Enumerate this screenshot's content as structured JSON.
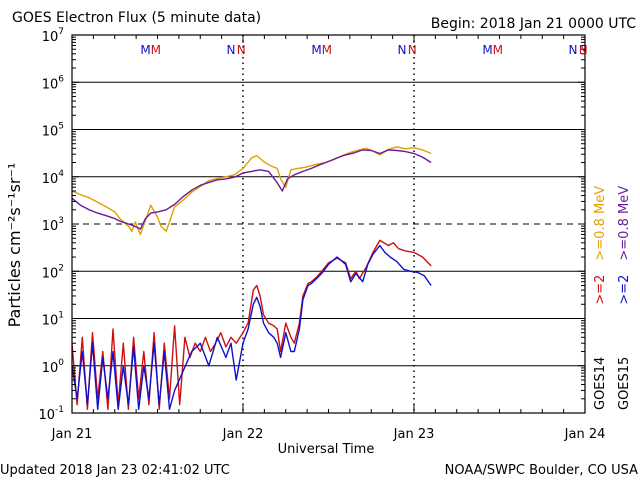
{
  "header": {
    "title": "GOES Electron Flux (5 minute data)",
    "begin": "Begin: 2018 Jan 21 0000 UTC"
  },
  "footer": {
    "updated": "Updated 2018 Jan 23 02:41:02 UTC",
    "source": "NOAA/SWPC Boulder, CO USA"
  },
  "chart_data": {
    "type": "line",
    "title": "GOES Electron Flux (5 minute data)",
    "xlabel": "Universal Time",
    "ylabel": "Particles cm⁻²s⁻¹sr⁻¹",
    "x_unit": "days since 2018 Jan 21 00:00 UTC",
    "xlim": [
      0,
      3
    ],
    "ylim": [
      0.1,
      10000000
    ],
    "yscale": "log",
    "x_ticks": [
      {
        "label": "Jan 21",
        "x": 0
      },
      {
        "label": "Jan 22",
        "x": 1
      },
      {
        "label": "Jan 23",
        "x": 2
      },
      {
        "label": "Jan 24",
        "x": 3
      }
    ],
    "y_ticks": [
      {
        "base": "10",
        "exp": "-1",
        "value": 0.1
      },
      {
        "base": "10",
        "exp": "0",
        "value": 1
      },
      {
        "base": "10",
        "exp": "1",
        "value": 10
      },
      {
        "base": "10",
        "exp": "2",
        "value": 100
      },
      {
        "base": "10",
        "exp": "3",
        "value": 1000
      },
      {
        "base": "10",
        "exp": "4",
        "value": 10000
      },
      {
        "base": "10",
        "exp": "5",
        "value": 100000
      },
      {
        "base": "10",
        "exp": "6",
        "value": 1000000
      },
      {
        "base": "10",
        "exp": "7",
        "value": 10000000
      }
    ],
    "threshold": {
      "value": 1000,
      "style": "dashed"
    },
    "grid": "horizontal decades",
    "markers": [
      {
        "label": "M",
        "x": 0.43,
        "color": "#1010cc"
      },
      {
        "label": "M",
        "x": 0.49,
        "color": "#cc1010"
      },
      {
        "label": "N",
        "x": 0.93,
        "color": "#1010cc"
      },
      {
        "label": "N",
        "x": 0.99,
        "color": "#cc1010"
      },
      {
        "label": "M",
        "x": 1.43,
        "color": "#1010cc"
      },
      {
        "label": "M",
        "x": 1.49,
        "color": "#cc1010"
      },
      {
        "label": "N",
        "x": 1.93,
        "color": "#1010cc"
      },
      {
        "label": "N",
        "x": 1.99,
        "color": "#cc1010"
      },
      {
        "label": "M",
        "x": 2.43,
        "color": "#1010cc"
      },
      {
        "label": "M",
        "x": 2.49,
        "color": "#cc1010"
      },
      {
        "label": "N",
        "x": 2.93,
        "color": "#1010cc"
      },
      {
        "label": "N",
        "x": 2.99,
        "color": "#cc1010"
      }
    ],
    "legend": {
      "placement": "right, rotated",
      "columns": [
        {
          "sat": "GOES14",
          "entries": [
            {
              "text": ">=2",
              "color": "#cc1010"
            },
            {
              "text": ">=0.8 MeV",
              "color": "#e0a000"
            }
          ]
        },
        {
          "sat": "GOES15",
          "entries": [
            {
              "text": ">=2",
              "color": "#1010cc"
            },
            {
              "text": ">=0.8 MeV",
              "color": "#6a1a9a"
            }
          ]
        }
      ]
    },
    "series": [
      {
        "name": "GOES14 >=0.8 MeV",
        "color": "#e0a000",
        "points": [
          [
            0,
            5000
          ],
          [
            0.05,
            4200
          ],
          [
            0.1,
            3600
          ],
          [
            0.15,
            2900
          ],
          [
            0.2,
            2300
          ],
          [
            0.25,
            1800
          ],
          [
            0.28,
            1300
          ],
          [
            0.33,
            900
          ],
          [
            0.35,
            700
          ],
          [
            0.37,
            1100
          ],
          [
            0.4,
            600
          ],
          [
            0.43,
            1200
          ],
          [
            0.46,
            2500
          ],
          [
            0.5,
            1400
          ],
          [
            0.52,
            900
          ],
          [
            0.55,
            700
          ],
          [
            0.57,
            1100
          ],
          [
            0.6,
            2300
          ],
          [
            0.65,
            3200
          ],
          [
            0.7,
            4700
          ],
          [
            0.75,
            6200
          ],
          [
            0.8,
            8300
          ],
          [
            0.85,
            9200
          ],
          [
            0.9,
            10000
          ],
          [
            0.95,
            11000
          ],
          [
            1.0,
            15000
          ],
          [
            1.05,
            25000
          ],
          [
            1.08,
            28000
          ],
          [
            1.12,
            21000
          ],
          [
            1.15,
            18000
          ],
          [
            1.18,
            16000
          ],
          [
            1.2,
            15000
          ],
          [
            1.22,
            9000
          ],
          [
            1.25,
            6000
          ],
          [
            1.28,
            14000
          ],
          [
            1.32,
            15000
          ],
          [
            1.37,
            16000
          ],
          [
            1.42,
            18000
          ],
          [
            1.48,
            20000
          ],
          [
            1.53,
            23000
          ],
          [
            1.58,
            28000
          ],
          [
            1.63,
            33000
          ],
          [
            1.68,
            37000
          ],
          [
            1.72,
            40000
          ],
          [
            1.76,
            35000
          ],
          [
            1.8,
            29000
          ],
          [
            1.85,
            38000
          ],
          [
            1.9,
            43000
          ],
          [
            1.95,
            39000
          ],
          [
            2.0,
            41000
          ],
          [
            2.05,
            37000
          ],
          [
            2.1,
            31000
          ]
        ]
      },
      {
        "name": "GOES15 >=0.8 MeV",
        "color": "#6a1a9a",
        "points": [
          [
            0,
            3500
          ],
          [
            0.05,
            2500
          ],
          [
            0.1,
            2000
          ],
          [
            0.15,
            1700
          ],
          [
            0.2,
            1500
          ],
          [
            0.25,
            1300
          ],
          [
            0.28,
            1150
          ],
          [
            0.33,
            1000
          ],
          [
            0.35,
            950
          ],
          [
            0.38,
            850
          ],
          [
            0.4,
            780
          ],
          [
            0.43,
            1300
          ],
          [
            0.46,
            1700
          ],
          [
            0.5,
            1800
          ],
          [
            0.55,
            2000
          ],
          [
            0.6,
            2600
          ],
          [
            0.65,
            3800
          ],
          [
            0.7,
            5200
          ],
          [
            0.75,
            6600
          ],
          [
            0.8,
            7600
          ],
          [
            0.85,
            8600
          ],
          [
            0.9,
            9000
          ],
          [
            0.95,
            9800
          ],
          [
            1.0,
            12000
          ],
          [
            1.05,
            13000
          ],
          [
            1.1,
            14000
          ],
          [
            1.15,
            13000
          ],
          [
            1.2,
            7500
          ],
          [
            1.23,
            5000
          ],
          [
            1.26,
            9000
          ],
          [
            1.3,
            11000
          ],
          [
            1.35,
            13000
          ],
          [
            1.4,
            15000
          ],
          [
            1.45,
            18000
          ],
          [
            1.5,
            21000
          ],
          [
            1.55,
            25000
          ],
          [
            1.6,
            29000
          ],
          [
            1.65,
            32000
          ],
          [
            1.7,
            37000
          ],
          [
            1.75,
            36000
          ],
          [
            1.8,
            31000
          ],
          [
            1.85,
            37000
          ],
          [
            1.9,
            36000
          ],
          [
            1.95,
            34000
          ],
          [
            2.0,
            31000
          ],
          [
            2.05,
            26000
          ],
          [
            2.1,
            20000
          ]
        ]
      },
      {
        "name": "GOES14 >=2 MeV",
        "color": "#cc1010",
        "points": [
          [
            0,
            3
          ],
          [
            0.03,
            0.15
          ],
          [
            0.06,
            4
          ],
          [
            0.09,
            0.12
          ],
          [
            0.12,
            5
          ],
          [
            0.15,
            0.2
          ],
          [
            0.18,
            2
          ],
          [
            0.21,
            0.12
          ],
          [
            0.24,
            6
          ],
          [
            0.27,
            0.15
          ],
          [
            0.3,
            3
          ],
          [
            0.33,
            0.12
          ],
          [
            0.36,
            4
          ],
          [
            0.39,
            0.2
          ],
          [
            0.42,
            2
          ],
          [
            0.45,
            0.15
          ],
          [
            0.48,
            5
          ],
          [
            0.51,
            0.12
          ],
          [
            0.54,
            3
          ],
          [
            0.57,
            0.2
          ],
          [
            0.6,
            7
          ],
          [
            0.63,
            0.15
          ],
          [
            0.66,
            4
          ],
          [
            0.69,
            1.5
          ],
          [
            0.72,
            3
          ],
          [
            0.75,
            2
          ],
          [
            0.78,
            4
          ],
          [
            0.81,
            2
          ],
          [
            0.84,
            3
          ],
          [
            0.87,
            5
          ],
          [
            0.9,
            2.5
          ],
          [
            0.93,
            4
          ],
          [
            0.96,
            3
          ],
          [
            1.0,
            5
          ],
          [
            1.03,
            8
          ],
          [
            1.06,
            40
          ],
          [
            1.08,
            50
          ],
          [
            1.1,
            30
          ],
          [
            1.12,
            12
          ],
          [
            1.15,
            8
          ],
          [
            1.18,
            7
          ],
          [
            1.2,
            6
          ],
          [
            1.22,
            2
          ],
          [
            1.25,
            8
          ],
          [
            1.28,
            4
          ],
          [
            1.3,
            3
          ],
          [
            1.33,
            8
          ],
          [
            1.35,
            30
          ],
          [
            1.38,
            55
          ],
          [
            1.4,
            60
          ],
          [
            1.43,
            75
          ],
          [
            1.46,
            100
          ],
          [
            1.5,
            150
          ],
          [
            1.55,
            190
          ],
          [
            1.6,
            150
          ],
          [
            1.63,
            70
          ],
          [
            1.66,
            100
          ],
          [
            1.68,
            70
          ],
          [
            1.72,
            120
          ],
          [
            1.76,
            250
          ],
          [
            1.8,
            450
          ],
          [
            1.85,
            350
          ],
          [
            1.88,
            400
          ],
          [
            1.91,
            300
          ],
          [
            1.95,
            270
          ],
          [
            2.0,
            250
          ],
          [
            2.05,
            200
          ],
          [
            2.1,
            130
          ]
        ]
      },
      {
        "name": "GOES15 >=2 MeV",
        "color": "#1010cc",
        "points": [
          [
            0,
            1
          ],
          [
            0.03,
            0.2
          ],
          [
            0.06,
            2
          ],
          [
            0.09,
            0.15
          ],
          [
            0.12,
            3
          ],
          [
            0.15,
            0.12
          ],
          [
            0.18,
            1.5
          ],
          [
            0.21,
            0.2
          ],
          [
            0.24,
            2
          ],
          [
            0.27,
            0.12
          ],
          [
            0.3,
            1
          ],
          [
            0.33,
            0.15
          ],
          [
            0.36,
            2.5
          ],
          [
            0.39,
            0.12
          ],
          [
            0.42,
            1
          ],
          [
            0.45,
            0.2
          ],
          [
            0.48,
            3
          ],
          [
            0.51,
            0.15
          ],
          [
            0.54,
            2
          ],
          [
            0.57,
            0.12
          ],
          [
            0.6,
            0.3
          ],
          [
            0.7,
            2
          ],
          [
            0.75,
            3
          ],
          [
            0.8,
            1
          ],
          [
            0.85,
            4
          ],
          [
            0.9,
            1.5
          ],
          [
            0.93,
            3
          ],
          [
            0.96,
            0.5
          ],
          [
            1.0,
            3
          ],
          [
            1.03,
            6
          ],
          [
            1.06,
            20
          ],
          [
            1.08,
            28
          ],
          [
            1.1,
            18
          ],
          [
            1.12,
            8
          ],
          [
            1.15,
            5
          ],
          [
            1.18,
            4
          ],
          [
            1.2,
            3
          ],
          [
            1.22,
            1.5
          ],
          [
            1.25,
            5
          ],
          [
            1.28,
            2
          ],
          [
            1.3,
            2
          ],
          [
            1.33,
            6
          ],
          [
            1.35,
            25
          ],
          [
            1.38,
            50
          ],
          [
            1.4,
            55
          ],
          [
            1.43,
            70
          ],
          [
            1.46,
            90
          ],
          [
            1.5,
            140
          ],
          [
            1.55,
            200
          ],
          [
            1.6,
            140
          ],
          [
            1.63,
            60
          ],
          [
            1.66,
            90
          ],
          [
            1.7,
            60
          ],
          [
            1.73,
            140
          ],
          [
            1.76,
            230
          ],
          [
            1.8,
            350
          ],
          [
            1.83,
            250
          ],
          [
            1.86,
            200
          ],
          [
            1.9,
            160
          ],
          [
            1.94,
            110
          ],
          [
            1.98,
            100
          ],
          [
            2.02,
            95
          ],
          [
            2.06,
            80
          ],
          [
            2.1,
            50
          ]
        ]
      }
    ]
  }
}
